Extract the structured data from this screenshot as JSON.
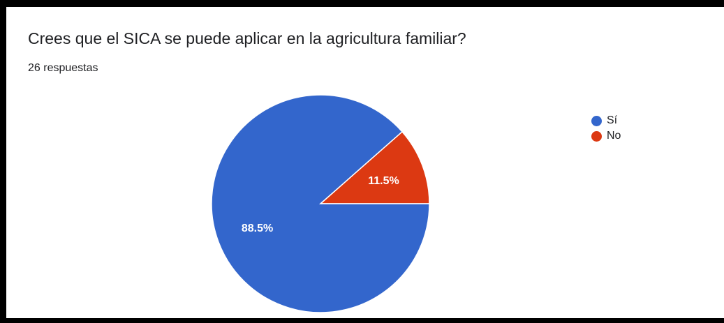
{
  "question": {
    "title": "Crees que el SICA se puede aplicar en la agricultura familiar?",
    "responses_label": "26 respuestas"
  },
  "chart_data": {
    "type": "pie",
    "title": "Crees que el SICA se puede aplicar en la agricultura familiar?",
    "total_responses": 26,
    "legend_position": "right",
    "slices": [
      {
        "label": "Sí",
        "value": 88.5,
        "value_label": "88.5%",
        "color": "#3366cc"
      },
      {
        "label": "No",
        "value": 11.5,
        "value_label": "11.5%",
        "color": "#dc3912"
      }
    ]
  }
}
